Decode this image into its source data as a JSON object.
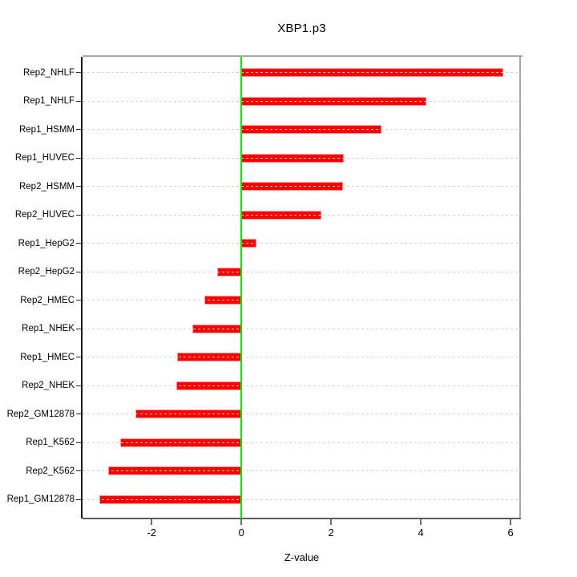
{
  "chart_data": {
    "type": "bar",
    "orientation": "horizontal",
    "title": "XBP1.p3",
    "xlabel": "Z-value",
    "categories": [
      "Rep2_NHLF",
      "Rep1_NHLF",
      "Rep1_HSMM",
      "Rep1_HUVEC",
      "Rep2_HSMM",
      "Rep2_HUVEC",
      "Rep1_HepG2",
      "Rep2_HepG2",
      "Rep2_HMEC",
      "Rep1_NHEK",
      "Rep1_HMEC",
      "Rep2_NHEK",
      "Rep2_GM12878",
      "Rep1_K562",
      "Rep2_K562",
      "Rep1_GM12878"
    ],
    "values": [
      5.83,
      4.12,
      3.13,
      2.29,
      2.27,
      1.78,
      0.33,
      -0.54,
      -0.83,
      -1.1,
      -1.43,
      -1.45,
      -2.37,
      -2.7,
      -2.96,
      -3.17
    ],
    "xlim": [
      -3.54,
      6.23
    ],
    "xticks": [
      -2,
      0,
      2,
      4,
      6
    ],
    "xtick_labels": [
      "-2",
      "0",
      "2",
      "4",
      "6"
    ],
    "grid": "dashed-horizontal-per-row",
    "legend": "none",
    "zero_line": 0,
    "colors": {
      "bar_fill": "#ff0000",
      "bar_edge": "#ff9999",
      "zero_line": "#00ee00",
      "gridline": "#d3d3d3",
      "box_top_right": "#a8a8a8",
      "axis_bottom": "#5e5e5e",
      "axis_left": "#1a1a1a",
      "text": "#000000"
    }
  }
}
